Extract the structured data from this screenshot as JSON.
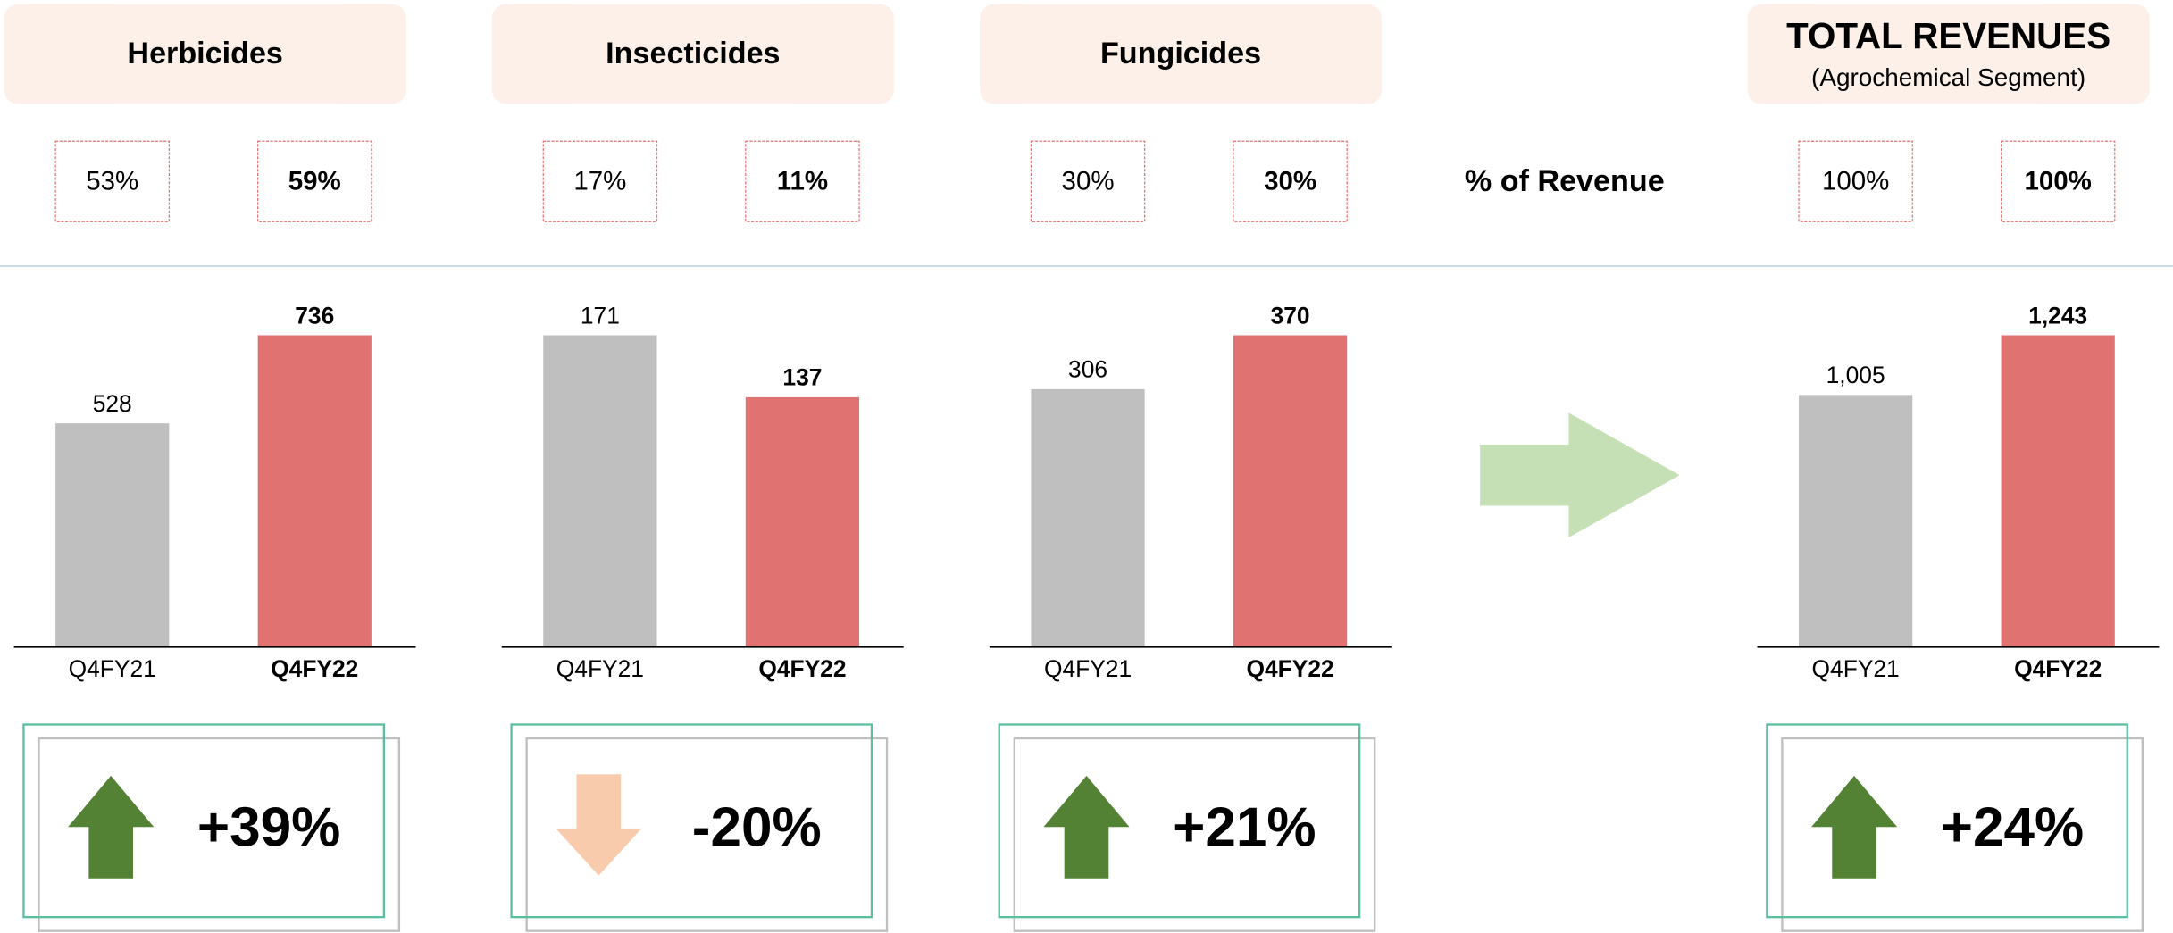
{
  "row_label": "% of Revenue",
  "chart_data": [
    {
      "type": "bar",
      "title": "Herbicides",
      "categories": [
        "Q4FY21",
        "Q4FY22"
      ],
      "values": [
        528,
        736
      ],
      "colors": [
        "#bfbfbf",
        "#e07272"
      ],
      "ylim": [
        0,
        736
      ],
      "share": [
        53,
        59
      ],
      "share_labels": [
        "53%",
        "59%"
      ],
      "change": 39,
      "change_label": "+39%"
    },
    {
      "type": "bar",
      "title": "Insecticides",
      "categories": [
        "Q4FY21",
        "Q4FY22"
      ],
      "values": [
        171,
        137
      ],
      "colors": [
        "#bfbfbf",
        "#e07272"
      ],
      "ylim": [
        0,
        171
      ],
      "share": [
        17,
        11
      ],
      "share_labels": [
        "17%",
        "11%"
      ],
      "change": -20,
      "change_label": "-20%"
    },
    {
      "type": "bar",
      "title": "Fungicides",
      "categories": [
        "Q4FY21",
        "Q4FY22"
      ],
      "values": [
        306,
        370
      ],
      "colors": [
        "#bfbfbf",
        "#e07272"
      ],
      "ylim": [
        0,
        370
      ],
      "share": [
        30,
        30
      ],
      "share_labels": [
        "30%",
        "30%"
      ],
      "change": 21,
      "change_label": "+21%"
    },
    {
      "type": "bar",
      "title": "TOTAL REVENUES",
      "subtitle": "(Agrochemical Segment)",
      "categories": [
        "Q4FY21",
        "Q4FY22"
      ],
      "values": [
        1005,
        1243
      ],
      "value_labels": [
        "1,005",
        "1,243"
      ],
      "colors": [
        "#bfbfbf",
        "#e07272"
      ],
      "ylim": [
        0,
        1243
      ],
      "share": [
        100,
        100
      ],
      "share_labels": [
        "100%",
        "100%"
      ],
      "change": 24,
      "change_label": "+24%"
    }
  ]
}
